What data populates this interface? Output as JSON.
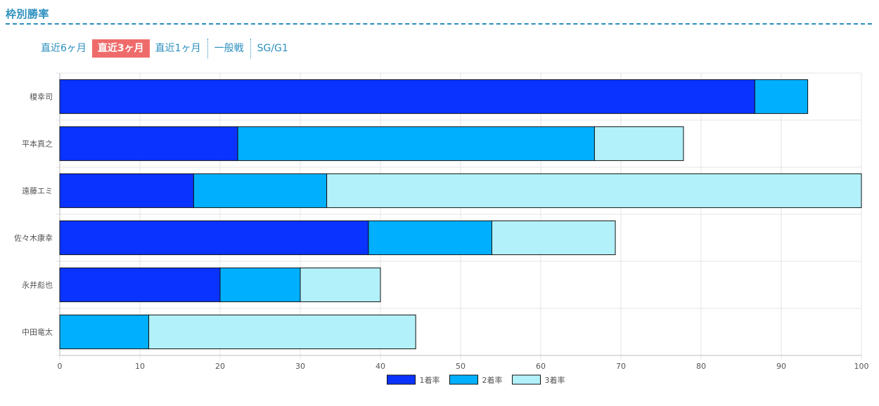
{
  "section": {
    "title": "枠別勝率"
  },
  "tabs": [
    {
      "label": "直近6ヶ月",
      "active": false
    },
    {
      "label": "直近3ヶ月",
      "active": true
    },
    {
      "label": "直近1ヶ月",
      "active": false
    },
    {
      "label": "一般戦",
      "active": false
    },
    {
      "label": "SG/G1",
      "active": false
    }
  ],
  "colors": {
    "accent": "#2b8fbd",
    "active_tab": "#ef6b6b"
  },
  "chart_data": {
    "type": "bar",
    "orientation": "horizontal",
    "stacked": true,
    "categories": [
      "榎幸司",
      "平本真之",
      "遠藤エミ",
      "佐々木康幸",
      "永井彪也",
      "中田竜太"
    ],
    "series": [
      {
        "name": "1着率",
        "color": "#0a33ff",
        "values": [
          86.7,
          22.2,
          16.7,
          38.5,
          20.0,
          0
        ]
      },
      {
        "name": "2着率",
        "color": "#00b0ff",
        "values": [
          6.6,
          44.5,
          16.6,
          15.4,
          10.0,
          11.1
        ]
      },
      {
        "name": "3着率",
        "color": "#b3f1fa",
        "values": [
          0,
          11.1,
          66.7,
          15.4,
          10.0,
          33.3
        ]
      }
    ],
    "xlim": [
      0,
      100
    ],
    "xticks": [
      0,
      10,
      20,
      30,
      40,
      50,
      60,
      70,
      80,
      90,
      100
    ],
    "grid": true,
    "legend_position": "bottom"
  }
}
